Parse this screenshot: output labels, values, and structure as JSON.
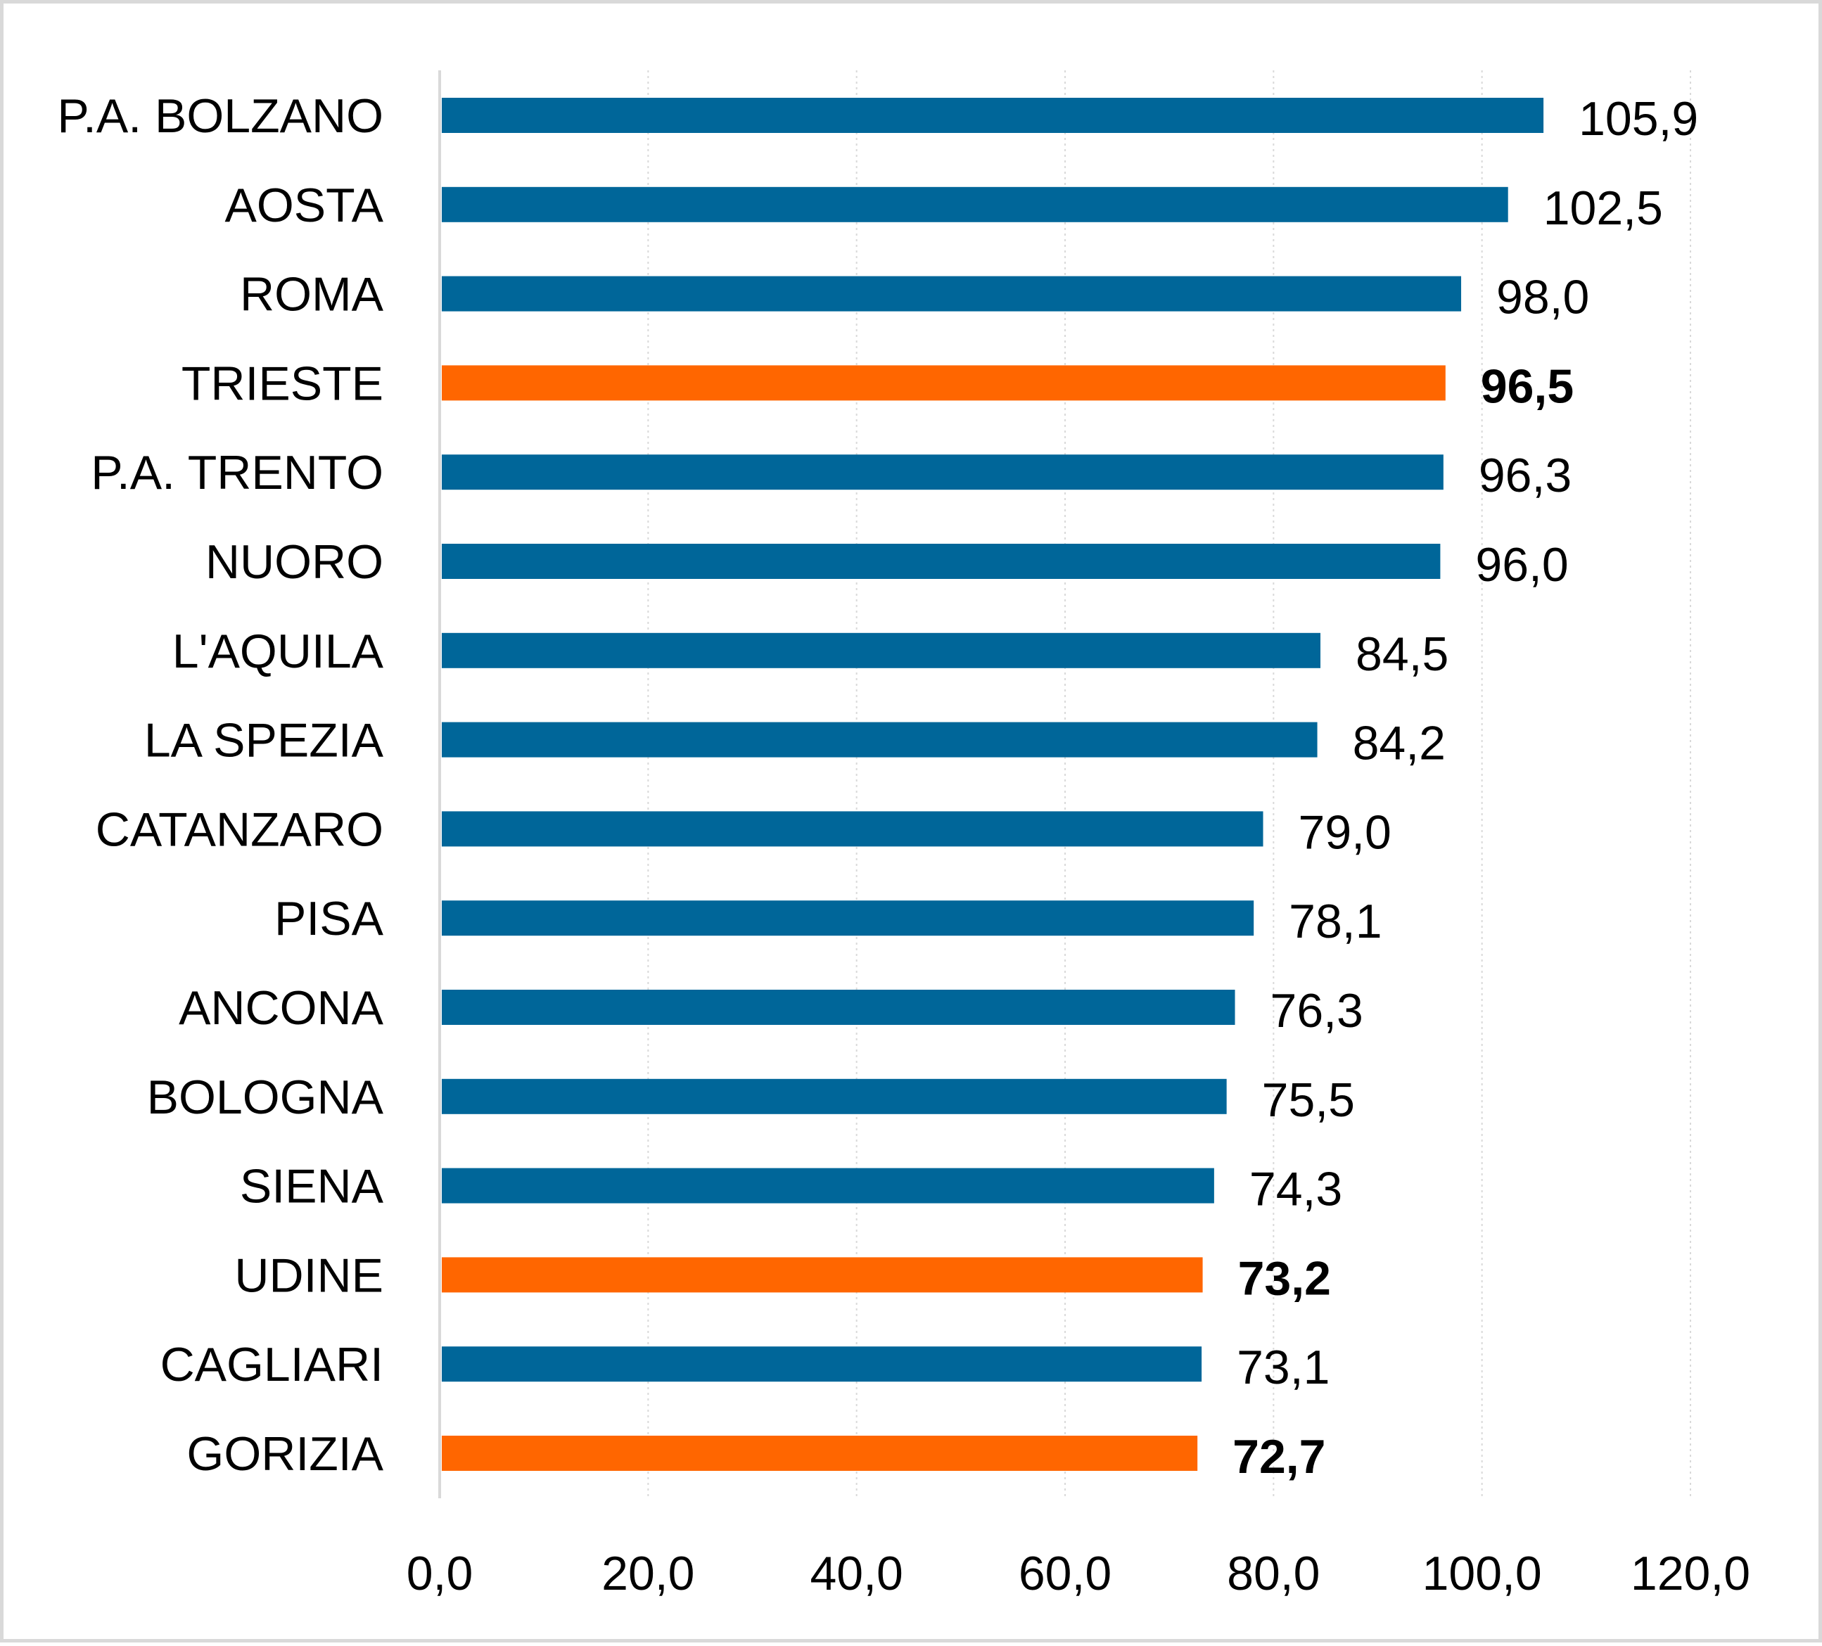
{
  "chart_data": {
    "type": "bar",
    "orientation": "horizontal",
    "categories": [
      "P.A. BOLZANO",
      "AOSTA",
      "ROMA",
      "TRIESTE",
      "P.A. TRENTO",
      "NUORO",
      "L'AQUILA",
      "LA SPEZIA",
      "CATANZARO",
      "PISA",
      "ANCONA",
      "BOLOGNA",
      "SIENA",
      "UDINE",
      "CAGLIARI",
      "GORIZIA"
    ],
    "values": [
      105.9,
      102.5,
      98.0,
      96.5,
      96.3,
      96.0,
      84.5,
      84.2,
      79.0,
      78.1,
      76.3,
      75.5,
      74.3,
      73.2,
      73.1,
      72.7
    ],
    "value_labels": [
      "105,9",
      "102,5",
      "98,0",
      "96,5",
      "96,3",
      "96,0",
      "84,5",
      "84,2",
      "79,0",
      "78,1",
      "76,3",
      "75,5",
      "74,3",
      "73,2",
      "73,1",
      "72,7"
    ],
    "highlighted": [
      false,
      false,
      false,
      true,
      false,
      false,
      false,
      false,
      false,
      false,
      false,
      false,
      false,
      true,
      false,
      true
    ],
    "xlim": [
      0,
      120
    ],
    "x_ticks": [
      0,
      20,
      40,
      60,
      80,
      100,
      120
    ],
    "x_tick_labels": [
      "0,0",
      "20,0",
      "40,0",
      "60,0",
      "80,0",
      "100,0",
      "120,0"
    ],
    "grid": "vertical-dotted",
    "title": "",
    "xlabel": "",
    "ylabel": "",
    "colors": {
      "bar": "#006699",
      "highlight": "#ff6600",
      "grid": "#d9d9d9",
      "axis": "#d9d9d9"
    }
  }
}
